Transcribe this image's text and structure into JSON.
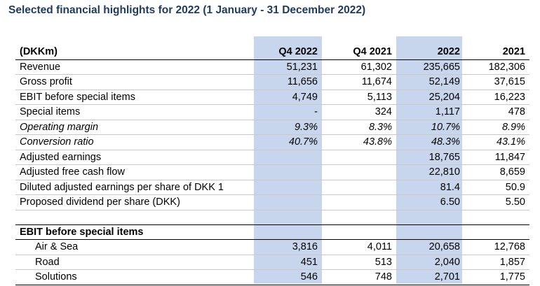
{
  "title": "Selected financial highlights for 2022 (1 January - 31 December 2022)",
  "header": {
    "label": "(DKKm)",
    "q4_2022": "Q4 2022",
    "q4_2021": "Q4 2021",
    "y2022": "2022",
    "y2021": "2021"
  },
  "rows": [
    {
      "label": "Revenue",
      "q4_2022": "51,231",
      "q4_2021": "61,302",
      "y2022": "235,665",
      "y2021": "182,306"
    },
    {
      "label": "Gross profit",
      "q4_2022": "11,656",
      "q4_2021": "11,674",
      "y2022": "52,149",
      "y2021": "37,615"
    },
    {
      "label": "EBIT before special items",
      "q4_2022": "4,749",
      "q4_2021": "5,113",
      "y2022": "25,204",
      "y2021": "16,223"
    },
    {
      "label": "Special items",
      "q4_2022": "-",
      "q4_2021": "324",
      "y2022": "1,117",
      "y2021": "478"
    },
    {
      "label": "Operating margin",
      "q4_2022": "9.3%",
      "q4_2021": "8.3%",
      "y2022": "10.7%",
      "y2021": "8.9%"
    },
    {
      "label": "Conversion ratio",
      "q4_2022": "40.7%",
      "q4_2021": "43.8%",
      "y2022": "48.3%",
      "y2021": "43.1%"
    },
    {
      "label": "Adjusted earnings",
      "q4_2022": "",
      "q4_2021": "",
      "y2022": "18,765",
      "y2021": "11,847"
    },
    {
      "label": "Adjusted free cash flow",
      "q4_2022": "",
      "q4_2021": "",
      "y2022": "22,810",
      "y2021": "8,659"
    },
    {
      "label": "Diluted adjusted earnings per share of DKK 1",
      "q4_2022": "",
      "q4_2021": "",
      "y2022": "81.4",
      "y2021": "50.9"
    },
    {
      "label": "Proposed dividend per share (DKK)",
      "q4_2022": "",
      "q4_2021": "",
      "y2022": "6.50",
      "y2021": "5.50"
    }
  ],
  "section": {
    "label": "EBIT before special items",
    "rows": [
      {
        "label": "Air & Sea",
        "q4_2022": "3,816",
        "q4_2021": "4,011",
        "y2022": "20,658",
        "y2021": "12,768"
      },
      {
        "label": "Road",
        "q4_2022": "451",
        "q4_2021": "513",
        "y2022": "2,040",
        "y2021": "1,857"
      },
      {
        "label": "Solutions",
        "q4_2022": "546",
        "q4_2021": "748",
        "y2022": "2,701",
        "y2021": "1,775"
      }
    ]
  }
}
